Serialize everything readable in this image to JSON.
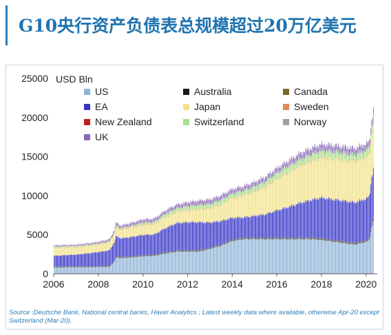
{
  "header": {
    "title": "G10央行资产负债表总规模超过20万亿美元"
  },
  "footer": {
    "source": "Source :Deutsche Bank, National central banks, Haver Analytics ; Latest weekly data where available, otherwise Apr-20 except Switzerland (Mar-20)."
  },
  "chart_data": {
    "type": "bar",
    "stacked": true,
    "unit_label": "USD Bln",
    "xlim": [
      2006,
      2020.5
    ],
    "ylim": [
      0,
      25000
    ],
    "x_ticks": [
      2006,
      2008,
      2010,
      2012,
      2014,
      2016,
      2018,
      2020
    ],
    "y_ticks": [
      0,
      5000,
      10000,
      15000,
      20000,
      25000
    ],
    "grid": false,
    "legend": "top-left, inside plot, 3 columns",
    "colors": {
      "US": "#8fb4d6",
      "Australia": "#1a1a1a",
      "Canada": "#7a6a2a",
      "EA": "#3535c8",
      "Japan": "#f2e28a",
      "Sweden": "#e08a5a",
      "New Zealand": "#c02020",
      "Switzerland": "#a8e08a",
      "Norway": "#a0a0a0",
      "UK": "#8a6ab8"
    },
    "x": [
      2006.0,
      2006.5,
      2007.0,
      2007.5,
      2008.0,
      2008.5,
      2008.7,
      2008.8,
      2009.0,
      2009.5,
      2010.0,
      2010.5,
      2011.0,
      2011.5,
      2012.0,
      2012.5,
      2013.0,
      2013.5,
      2014.0,
      2014.5,
      2015.0,
      2015.5,
      2016.0,
      2016.5,
      2017.0,
      2017.5,
      2018.0,
      2018.5,
      2019.0,
      2019.5,
      2020.0,
      2020.15,
      2020.25,
      2020.35
    ],
    "series": [
      {
        "name": "US",
        "values": [
          800,
          830,
          850,
          850,
          880,
          900,
          1500,
          2100,
          2000,
          2100,
          2250,
          2300,
          2600,
          2850,
          2850,
          2850,
          3200,
          3600,
          4200,
          4450,
          4450,
          4450,
          4450,
          4450,
          4450,
          4450,
          4350,
          4150,
          3950,
          3750,
          4100,
          4300,
          6000,
          6900
        ]
      },
      {
        "name": "Australia",
        "values": [
          60,
          60,
          60,
          60,
          60,
          60,
          80,
          80,
          70,
          70,
          70,
          70,
          80,
          80,
          90,
          90,
          90,
          90,
          100,
          100,
          100,
          100,
          100,
          100,
          100,
          100,
          110,
          110,
          110,
          110,
          110,
          110,
          150,
          200
        ]
      },
      {
        "name": "Canada",
        "values": [
          40,
          40,
          40,
          40,
          40,
          40,
          50,
          60,
          60,
          50,
          50,
          50,
          50,
          50,
          60,
          60,
          60,
          60,
          60,
          60,
          60,
          60,
          60,
          60,
          70,
          70,
          70,
          70,
          70,
          70,
          80,
          80,
          250,
          380
        ]
      },
      {
        "name": "EA",
        "values": [
          1400,
          1450,
          1500,
          1650,
          1800,
          2000,
          2300,
          2600,
          2400,
          2500,
          2600,
          2600,
          3100,
          3500,
          3600,
          3600,
          3200,
          3000,
          2800,
          2600,
          2800,
          3000,
          3500,
          3900,
          4400,
          4800,
          5200,
          5200,
          5200,
          5200,
          5300,
          5400,
          6000,
          6200
        ]
      },
      {
        "name": "Japan",
        "values": [
          1000,
          1000,
          950,
          950,
          950,
          1000,
          1050,
          1100,
          1100,
          1200,
          1300,
          1300,
          1400,
          1400,
          1500,
          1600,
          1800,
          2100,
          2500,
          2800,
          3100,
          3500,
          4000,
          4400,
          4700,
          4900,
          5100,
          5200,
          5200,
          5200,
          5300,
          5300,
          5400,
          5500
        ]
      },
      {
        "name": "Sweden",
        "values": [
          30,
          30,
          30,
          30,
          30,
          30,
          50,
          60,
          60,
          50,
          50,
          50,
          50,
          50,
          50,
          50,
          50,
          50,
          50,
          50,
          60,
          60,
          60,
          60,
          60,
          60,
          60,
          60,
          60,
          60,
          60,
          60,
          80,
          100
        ]
      },
      {
        "name": "New Zealand",
        "values": [
          10,
          10,
          10,
          10,
          10,
          10,
          10,
          10,
          10,
          10,
          10,
          10,
          10,
          10,
          10,
          10,
          10,
          10,
          10,
          10,
          10,
          10,
          10,
          10,
          10,
          10,
          10,
          10,
          10,
          10,
          10,
          10,
          20,
          30
        ]
      },
      {
        "name": "Switzerland",
        "values": [
          100,
          100,
          100,
          100,
          100,
          100,
          120,
          120,
          130,
          150,
          200,
          220,
          350,
          400,
          450,
          500,
          500,
          520,
          520,
          520,
          560,
          650,
          700,
          750,
          780,
          800,
          820,
          820,
          820,
          820,
          820,
          820,
          850,
          900
        ]
      },
      {
        "name": "Norway",
        "values": [
          30,
          30,
          30,
          30,
          30,
          30,
          40,
          40,
          40,
          40,
          40,
          40,
          50,
          50,
          50,
          50,
          50,
          50,
          50,
          50,
          50,
          50,
          50,
          50,
          50,
          50,
          50,
          50,
          50,
          50,
          50,
          50,
          60,
          70
        ]
      },
      {
        "name": "UK",
        "values": [
          150,
          150,
          150,
          160,
          180,
          250,
          300,
          400,
          300,
          350,
          400,
          400,
          400,
          450,
          500,
          550,
          550,
          550,
          550,
          550,
          550,
          550,
          600,
          650,
          750,
          800,
          800,
          800,
          800,
          800,
          800,
          800,
          950,
          1050
        ]
      }
    ]
  }
}
